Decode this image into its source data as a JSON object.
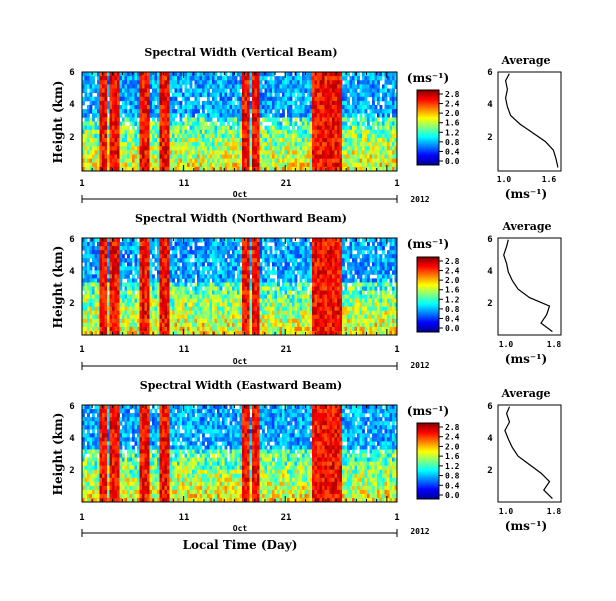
{
  "colors": {
    "jet": [
      "#00008f",
      "#0000ff",
      "#0080ff",
      "#00ffff",
      "#80ff80",
      "#ffff00",
      "#ff8000",
      "#ff0000",
      "#800000"
    ],
    "background": "#ffffff",
    "line": "#000000"
  },
  "shared": {
    "colorbar_unit": "(ms⁻¹)",
    "colorbar_ticks": [
      "2.8",
      "2.4",
      "2.0",
      "1.6",
      "1.2",
      "0.8",
      "0.4",
      "0.0"
    ],
    "y_ticks": [
      "6",
      "4",
      "2"
    ],
    "x_ticks": [
      "1",
      "11",
      "21",
      "1"
    ],
    "month_label": "Oct",
    "year_label": "2012",
    "y_label": "Height (km)",
    "avg_title": "Average",
    "avg_xlabel": "(ms⁻¹)",
    "x_label": "Local Time (Day)"
  },
  "chart_data": [
    {
      "type": "heatmap",
      "title": "Spectral Width (Vertical Beam)",
      "ylabel": "Height (km)",
      "ylim": [
        0.3,
        6
      ],
      "xlim": [
        "1 Oct 2012",
        "1 Nov 2012"
      ],
      "color_range": [
        0.0,
        2.8
      ],
      "colorbar_ticks": [
        0.0,
        0.4,
        0.8,
        1.2,
        1.6,
        2.0,
        2.4,
        2.8
      ],
      "high_width_days": [
        3,
        4,
        7,
        9,
        17,
        18,
        24,
        25,
        26
      ],
      "average_profile": {
        "title": "Average",
        "xlabel": "(ms⁻¹)",
        "x_ticks": [
          "1.0",
          "1.6"
        ],
        "xlim": [
          0.8,
          1.8
        ],
        "height_km": [
          0.5,
          1.0,
          1.5,
          2.0,
          2.5,
          3.0,
          3.5,
          4.0,
          4.5,
          5.0,
          5.5,
          5.9
        ],
        "width_ms": [
          1.75,
          1.72,
          1.68,
          1.55,
          1.35,
          1.15,
          1.0,
          0.95,
          0.92,
          0.95,
          0.92,
          0.98
        ]
      }
    },
    {
      "type": "heatmap",
      "title": "Spectral Width (Northward Beam)",
      "ylabel": "Height (km)",
      "ylim": [
        0.3,
        6
      ],
      "xlim": [
        "1 Oct 2012",
        "1 Nov 2012"
      ],
      "color_range": [
        0.0,
        2.8
      ],
      "colorbar_ticks": [
        0.0,
        0.4,
        0.8,
        1.2,
        1.6,
        2.0,
        2.4,
        2.8
      ],
      "high_width_days": [
        3,
        4,
        7,
        9,
        17,
        18,
        24,
        25,
        26
      ],
      "average_profile": {
        "title": "Average",
        "xlabel": "(ms⁻¹)",
        "x_ticks": [
          "1.0",
          "1.8"
        ],
        "xlim": [
          0.8,
          1.9
        ],
        "height_km": [
          0.5,
          1.0,
          1.5,
          2.0,
          2.5,
          3.0,
          3.5,
          4.0,
          4.5,
          5.0,
          5.5,
          5.9
        ],
        "width_ms": [
          1.75,
          1.55,
          1.65,
          1.7,
          1.35,
          1.15,
          1.05,
          0.98,
          0.95,
          0.9,
          0.95,
          0.98
        ]
      }
    },
    {
      "type": "heatmap",
      "title": "Spectral Width (Eastward Beam)",
      "ylabel": "Height (km)",
      "ylim": [
        0.3,
        6
      ],
      "xlim": [
        "1 Oct 2012",
        "1 Nov 2012"
      ],
      "color_range": [
        0.0,
        2.8
      ],
      "colorbar_ticks": [
        0.0,
        0.4,
        0.8,
        1.2,
        1.6,
        2.0,
        2.4,
        2.8
      ],
      "high_width_days": [
        3,
        4,
        7,
        9,
        17,
        18,
        24,
        25,
        26
      ],
      "average_profile": {
        "title": "Average",
        "xlabel": "(ms⁻¹)",
        "x_ticks": [
          "1.0",
          "1.8"
        ],
        "xlim": [
          0.8,
          1.9
        ],
        "height_km": [
          0.5,
          1.0,
          1.5,
          2.0,
          2.5,
          3.0,
          3.5,
          4.0,
          4.5,
          5.0,
          5.5,
          5.9
        ],
        "width_ms": [
          1.75,
          1.6,
          1.7,
          1.55,
          1.35,
          1.15,
          1.05,
          0.98,
          0.92,
          1.0,
          0.95,
          1.0
        ]
      }
    }
  ]
}
